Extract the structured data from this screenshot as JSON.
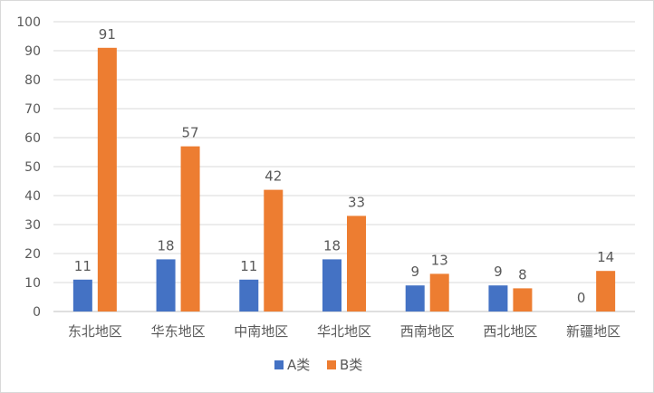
{
  "chart_data": {
    "type": "bar",
    "categories": [
      "东北地区",
      "华东地区",
      "中南地区",
      "华北地区",
      "西南地区",
      "西北地区",
      "新疆地区"
    ],
    "series": [
      {
        "name": "A类",
        "values": [
          11,
          18,
          11,
          18,
          9,
          9,
          0
        ],
        "color": "#4472C4"
      },
      {
        "name": "B类",
        "values": [
          91,
          57,
          42,
          33,
          13,
          8,
          14
        ],
        "color": "#ED7D31"
      }
    ],
    "y_ticks": [
      0,
      10,
      20,
      30,
      40,
      50,
      60,
      70,
      80,
      90,
      100
    ],
    "ylim": [
      0,
      100
    ],
    "grid": true,
    "legend_position": "bottom",
    "data_labels": true
  }
}
